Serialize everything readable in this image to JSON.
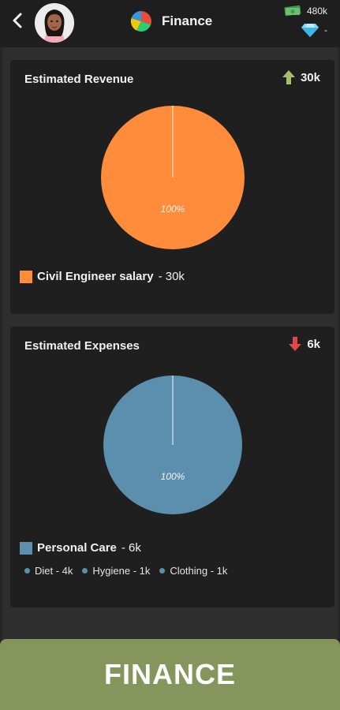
{
  "header": {
    "title": "Finance",
    "money": "480k",
    "gems": "-"
  },
  "revenue": {
    "title": "Estimated Revenue",
    "total": "30k",
    "color": "#ff8c3a",
    "chart_data": {
      "type": "pie",
      "slices": [
        {
          "label": "Civil Engineer salary",
          "value": 100,
          "display": "100%"
        }
      ]
    },
    "legend_label": "Civil Engineer salary",
    "legend_value": "- 30k"
  },
  "expenses": {
    "title": "Estimated Expenses",
    "total": "6k",
    "color": "#5b8fad",
    "chart_data": {
      "type": "pie",
      "slices": [
        {
          "label": "Personal Care",
          "value": 100,
          "display": "100%"
        }
      ]
    },
    "legend_label": "Personal Care",
    "legend_value": "- 6k",
    "sub_items": [
      "Diet - 4k",
      "Hygiene - 1k",
      "Clothing - 1k"
    ]
  },
  "footer": {
    "label": "FINANCE"
  },
  "icons": {
    "back": "chevron-left-icon",
    "title": "pie-chart-icon",
    "money": "cash-icon",
    "gems": "diamond-icon",
    "up": "arrow-up-icon",
    "down": "arrow-down-icon"
  }
}
